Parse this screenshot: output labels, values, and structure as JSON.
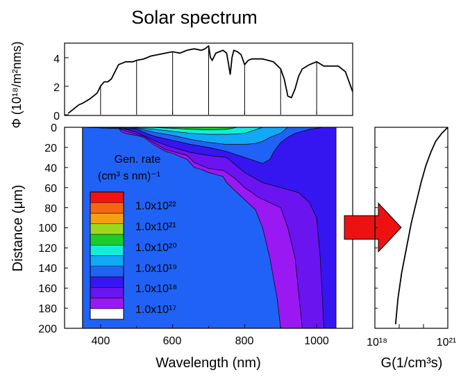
{
  "chart_data": [
    {
      "type": "line",
      "title": "Solar spectrum",
      "ylabel": "Φ (10¹⁸/m²nms)",
      "xlim": [
        300,
        1100
      ],
      "ylim": [
        0,
        5
      ],
      "y_ticks": [
        "0",
        "2",
        "4"
      ],
      "vertical_marks_nm": [
        400,
        500,
        600,
        700,
        800,
        900,
        1000
      ],
      "series": [
        {
          "x": [
            310,
            320,
            330,
            340,
            350,
            360,
            370,
            380,
            390,
            400,
            410,
            420,
            430,
            440,
            450,
            460,
            470,
            480,
            490,
            500,
            520,
            540,
            560,
            580,
            600,
            620,
            640,
            660,
            680,
            690,
            700,
            705,
            710,
            720,
            730,
            740,
            750,
            755,
            760,
            765,
            770,
            780,
            790,
            800,
            810,
            820,
            850,
            880,
            900,
            910,
            920,
            930,
            940,
            950,
            960,
            980,
            1000,
            1020,
            1040,
            1060,
            1080,
            1100
          ],
          "y": [
            0.1,
            0.3,
            0.5,
            0.7,
            0.8,
            0.95,
            1.1,
            1.3,
            1.5,
            2.0,
            2.3,
            2.3,
            2.5,
            3.0,
            3.5,
            3.6,
            3.7,
            3.7,
            3.7,
            3.8,
            3.9,
            4.1,
            4.2,
            4.3,
            4.4,
            4.3,
            4.5,
            4.6,
            4.5,
            4.6,
            4.8,
            4.0,
            3.8,
            4.3,
            4.4,
            4.5,
            4.3,
            3.6,
            2.8,
            4.0,
            4.5,
            4.4,
            4.2,
            3.5,
            3.8,
            3.9,
            3.9,
            3.7,
            3.2,
            2.5,
            1.3,
            1.2,
            1.8,
            2.7,
            3.2,
            3.5,
            3.7,
            3.4,
            3.4,
            3.4,
            3.0,
            1.6
          ]
        }
      ]
    },
    {
      "type": "heatmap",
      "xlabel": "Wavelength (nm)",
      "ylabel": "Distance (μm)",
      "xlim": [
        300,
        1100
      ],
      "ylim": [
        0,
        200
      ],
      "x_ticks": [
        "400",
        "600",
        "800",
        "1000"
      ],
      "y_ticks": [
        "0",
        "20",
        "40",
        "60",
        "80",
        "100",
        "120",
        "140",
        "160",
        "180",
        "200"
      ],
      "legend_title_line1": "Gen. rate",
      "legend_title_line2": "(cm³ s nm)⁻¹",
      "legend_labels": [
        "1.0x10²²",
        "1.0x10²¹",
        "1.0x10²⁰",
        "1.0x10¹⁹",
        "1.0x10¹⁸",
        "1.0x10¹⁷"
      ],
      "level_colors": [
        "#ffffff",
        "#9a19f2",
        "#6a14f0",
        "#3516f0",
        "#2062f5",
        "#11a8f5",
        "#13eddc",
        "#1ccc2a",
        "#9cd91e",
        "#f5a012",
        "#f76511",
        "#f21212"
      ],
      "contours": [
        {
          "level": 1,
          "x": [
            350,
            450,
            460,
            480,
            500,
            520,
            550,
            580,
            600,
            620,
            640,
            660,
            680,
            700,
            720,
            740,
            750,
            770,
            800,
            830,
            850,
            870,
            880,
            890,
            900
          ],
          "y": [
            0,
            1,
            5,
            7,
            8,
            10,
            18,
            24,
            26,
            29,
            32,
            40,
            42,
            45,
            47,
            49,
            55,
            62,
            72,
            82,
            100,
            130,
            150,
            170,
            200
          ]
        },
        {
          "level": 2,
          "x": [
            350,
            450,
            470,
            500,
            520,
            550,
            580,
            600,
            620,
            640,
            660,
            680,
            700,
            720,
            740,
            750,
            770,
            800,
            840,
            870,
            900,
            920,
            940,
            960
          ],
          "y": [
            0,
            1,
            4,
            7,
            9,
            16,
            22,
            24,
            26,
            28,
            35,
            38,
            41,
            42,
            43,
            45,
            50,
            60,
            70,
            75,
            80,
            100,
            130,
            200
          ]
        },
        {
          "level": 3,
          "x": [
            350,
            460,
            500,
            530,
            560,
            600,
            650,
            700,
            750,
            800,
            850,
            900,
            950,
            980,
            1000,
            1010,
            1020
          ],
          "y": [
            0,
            1,
            5,
            10,
            15,
            20,
            25,
            28,
            30,
            45,
            55,
            60,
            65,
            75,
            90,
            130,
            200
          ]
        },
        {
          "level": 4,
          "x": [
            360,
            500,
            520,
            550,
            600,
            650,
            700,
            750,
            800,
            850,
            870,
            880,
            890,
            900,
            920,
            940,
            960,
            980,
            1000,
            1020,
            1050
          ],
          "y": [
            0,
            2,
            5,
            9,
            13,
            17,
            20,
            24,
            30,
            36,
            32,
            25,
            20,
            15,
            10,
            6,
            4,
            2,
            1,
            0,
            0
          ]
        },
        {
          "level": 5,
          "x": [
            380,
            500,
            550,
            600,
            650,
            700,
            750,
            800,
            830,
            850,
            870,
            900,
            920
          ],
          "y": [
            0,
            1,
            5,
            8,
            12,
            15,
            17,
            17,
            16,
            14,
            10,
            6,
            0
          ]
        },
        {
          "level": 6,
          "x": [
            400,
            500,
            550,
            600,
            650,
            700,
            750,
            800,
            850
          ],
          "y": [
            0,
            0.5,
            2,
            4,
            6,
            7,
            7,
            6,
            0
          ]
        },
        {
          "level": 7,
          "x": [
            420,
            550,
            600,
            650,
            700,
            750,
            780
          ],
          "y": [
            0,
            0.3,
            1,
            2,
            2.5,
            2,
            0
          ]
        }
      ]
    },
    {
      "type": "line",
      "xlabel": "G(1/cm³s)",
      "x_scale": "log",
      "x_ticks": [
        "10¹⁸",
        "10²¹"
      ],
      "x_ticks_exp": [
        18,
        21
      ],
      "ylim": [
        0,
        200
      ],
      "series": [
        {
          "x_exp": [
            21.0,
            20.75,
            20.5,
            20.3,
            20.1,
            19.9,
            19.7,
            19.5,
            19.3,
            19.1,
            18.95,
            18.85
          ],
          "y": [
            0,
            6,
            14,
            25,
            38,
            55,
            75,
            95,
            120,
            145,
            170,
            196
          ]
        }
      ]
    }
  ],
  "arrow_color": "#ee1111"
}
